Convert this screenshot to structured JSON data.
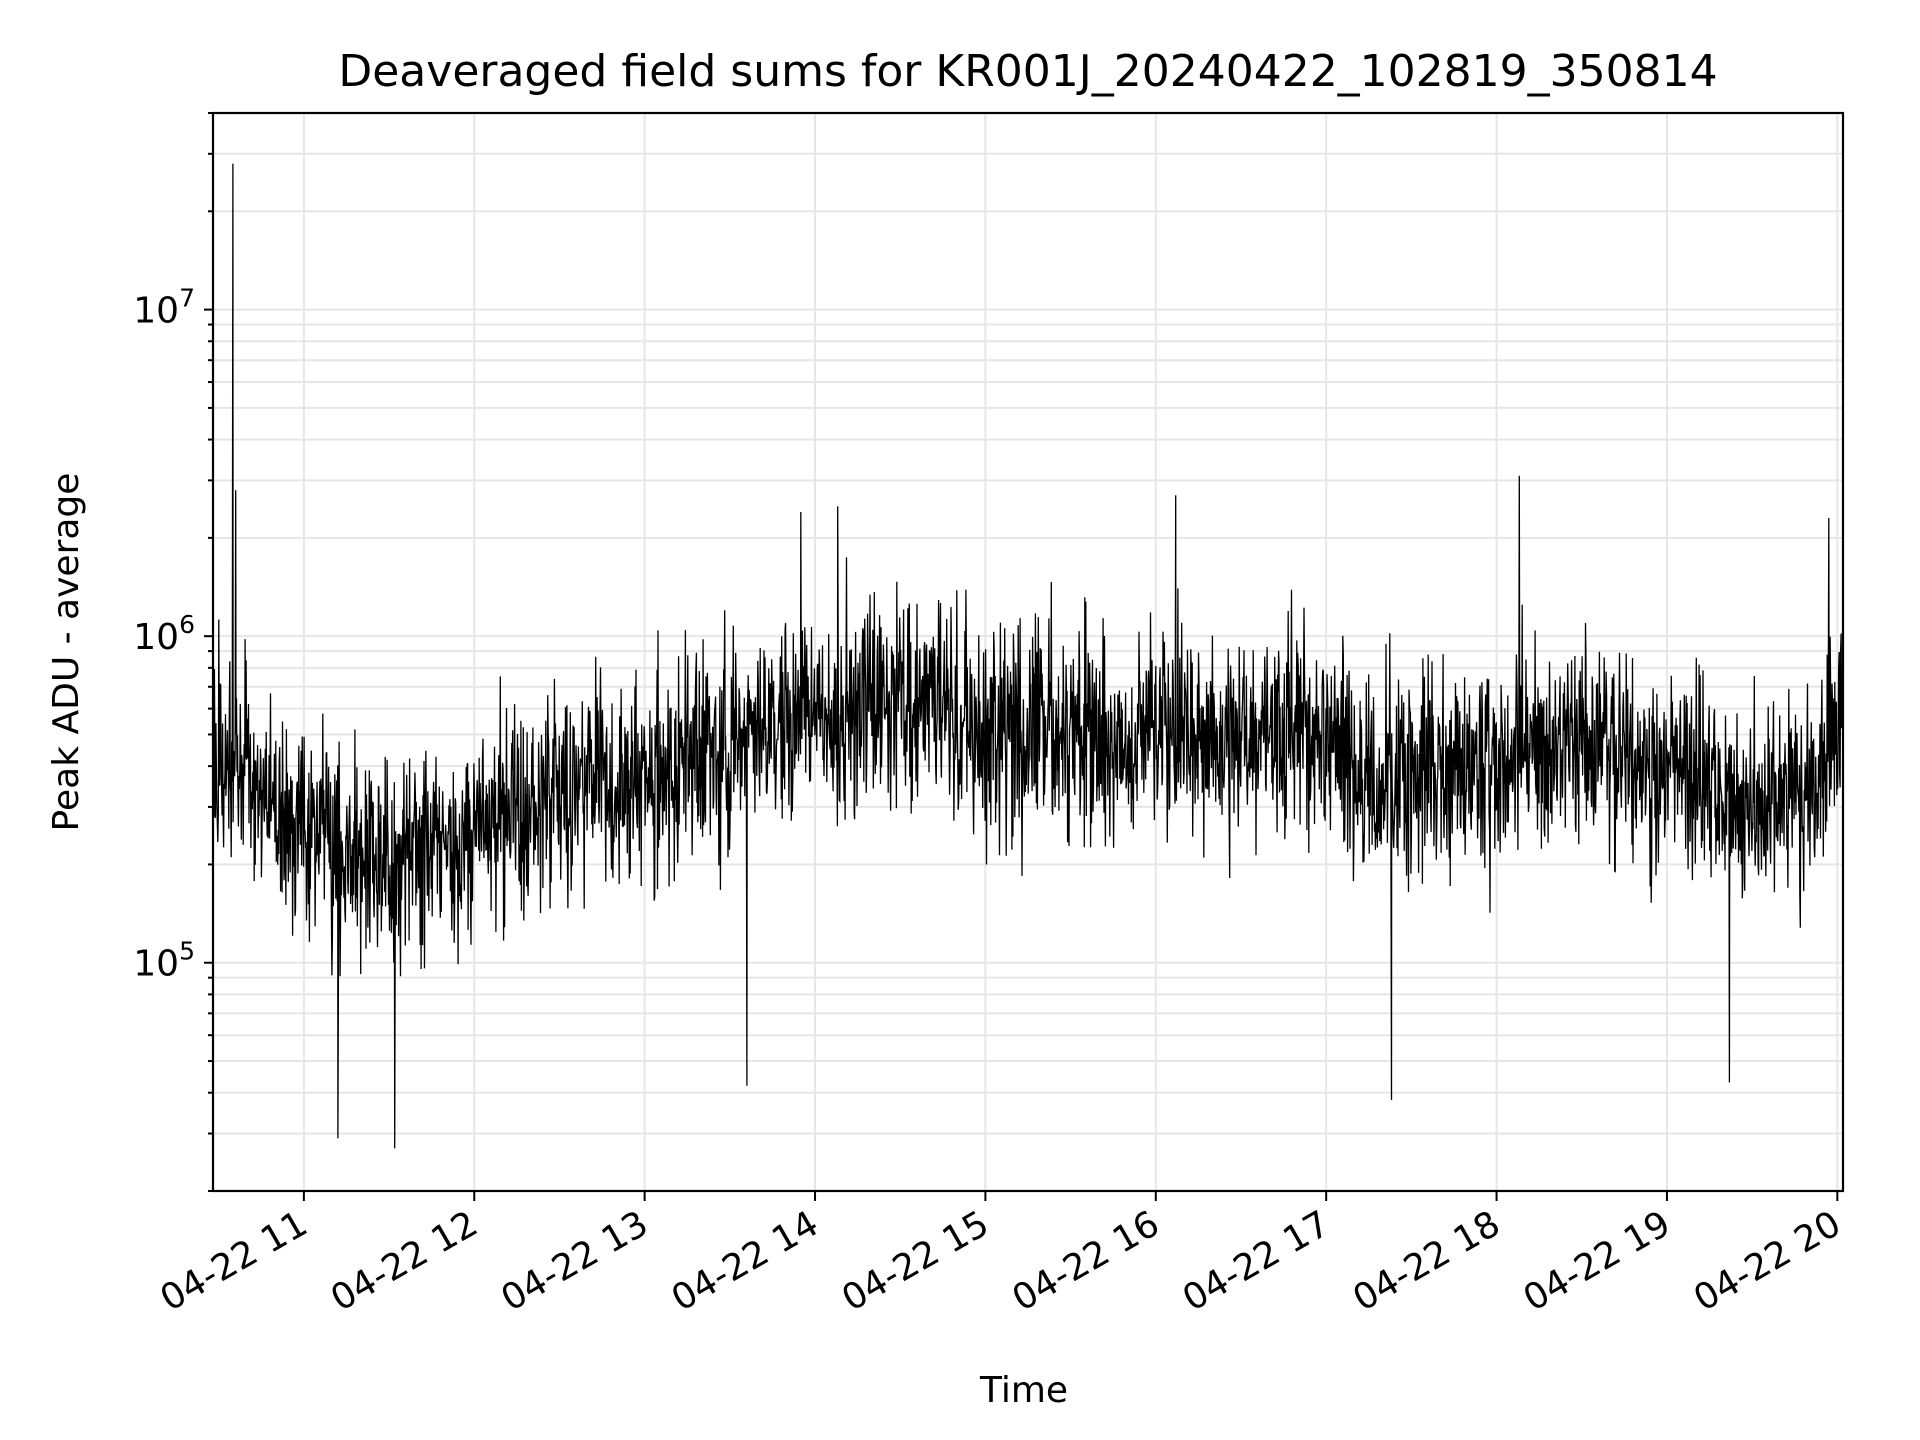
{
  "chart_data": {
    "type": "line",
    "title": "Deaveraged field sums for KR001J_20240422_102819_350814",
    "xlabel": "Time",
    "ylabel": "Peak ADU - average",
    "xlim": [
      "2024-04-22T10:28:00",
      "2024-04-22T20:02:00"
    ],
    "ylim": [
      20000,
      40000000
    ],
    "yscale": "log",
    "grid": "major and minor",
    "x_ticks": [
      {
        "label": "04-22 11",
        "value": "2024-04-22T11:00:00"
      },
      {
        "label": "04-22 12",
        "value": "2024-04-22T12:00:00"
      },
      {
        "label": "04-22 13",
        "value": "2024-04-22T13:00:00"
      },
      {
        "label": "04-22 14",
        "value": "2024-04-22T14:00:00"
      },
      {
        "label": "04-22 15",
        "value": "2024-04-22T15:00:00"
      },
      {
        "label": "04-22 16",
        "value": "2024-04-22T16:00:00"
      },
      {
        "label": "04-22 17",
        "value": "2024-04-22T17:00:00"
      },
      {
        "label": "04-22 18",
        "value": "2024-04-22T18:00:00"
      },
      {
        "label": "04-22 19",
        "value": "2024-04-22T19:00:00"
      },
      {
        "label": "04-22 20",
        "value": "2024-04-22T20:00:00"
      }
    ],
    "y_ticks": [
      {
        "base": "10",
        "exp": "5",
        "value": 100000
      },
      {
        "base": "10",
        "exp": "6",
        "value": 1000000
      },
      {
        "base": "10",
        "exp": "7",
        "value": 10000000
      }
    ],
    "series": [
      {
        "color": "#000000",
        "trend_x": [
          "2024-04-22T10:28:00",
          "2024-04-22T11:00:00",
          "2024-04-22T11:30:00",
          "2024-04-22T12:00:00",
          "2024-04-22T13:00:00",
          "2024-04-22T14:00:00",
          "2024-04-22T14:30:00",
          "2024-04-22T15:00:00",
          "2024-04-22T16:00:00",
          "2024-04-22T17:00:00",
          "2024-04-22T17:20:00",
          "2024-04-22T18:00:00",
          "2024-04-22T18:30:00",
          "2024-04-22T19:00:00",
          "2024-04-22T19:30:00",
          "2024-04-22T19:55:00",
          "2024-04-22T20:02:00"
        ],
        "trend_y": [
          450000,
          260000,
          190000,
          260000,
          380000,
          580000,
          620000,
          520000,
          520000,
          470000,
          330000,
          420000,
          470000,
          390000,
          290000,
          380000,
          620000
        ],
        "peaks": [
          {
            "x": "2024-04-22T10:35:00",
            "y": 28000000
          },
          {
            "x": "2024-04-22T10:36:00",
            "y": 2800000
          },
          {
            "x": "2024-04-22T13:55:00",
            "y": 2400000
          },
          {
            "x": "2024-04-22T14:08:00",
            "y": 2500000
          },
          {
            "x": "2024-04-22T16:07:00",
            "y": 2700000
          },
          {
            "x": "2024-04-22T18:08:00",
            "y": 3100000
          },
          {
            "x": "2024-04-22T19:57:00",
            "y": 2300000
          }
        ],
        "troughs": [
          {
            "x": "2024-04-22T11:12:00",
            "y": 29000
          },
          {
            "x": "2024-04-22T11:32:00",
            "y": 27000
          },
          {
            "x": "2024-04-22T17:23:00",
            "y": 38000
          },
          {
            "x": "2024-04-22T13:36:00",
            "y": 42000
          },
          {
            "x": "2024-04-22T19:22:00",
            "y": 43000
          }
        ]
      }
    ]
  }
}
